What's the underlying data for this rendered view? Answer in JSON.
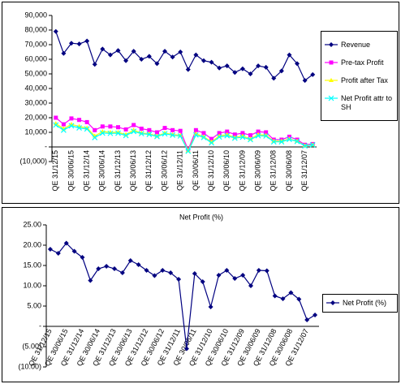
{
  "chart_data": [
    {
      "type": "line",
      "categories": [
        "QE 31/12/15",
        null,
        "QE 30/06/15",
        null,
        "QE 31/12/14",
        null,
        "QE 30/06/14",
        null,
        "QE 31/12/13",
        null,
        "QE 30/06/13",
        null,
        "QE 31/12/12",
        null,
        "QE 30/06/12",
        null,
        "QE 31/12/11",
        null,
        "QE 30/06/11",
        null,
        "QE 31/12/10",
        null,
        "QE 30/06/10",
        null,
        "QE 31/12/09",
        null,
        "QE 30/06/09",
        null,
        "QE 31/12/08",
        null,
        "QE 30/06/08",
        null,
        "QE 31/12/07",
        null
      ],
      "series": [
        {
          "name": "Revenue",
          "color": "#000080",
          "marker": "diamond",
          "values": [
            79000,
            64000,
            71000,
            70500,
            72500,
            56500,
            67000,
            63000,
            66000,
            59000,
            65500,
            60000,
            62000,
            57000,
            65500,
            61500,
            65000,
            53000,
            63000,
            59000,
            58000,
            54000,
            55500,
            51000,
            53500,
            50000,
            55500,
            54500,
            47000,
            52000,
            63000,
            57000,
            45500,
            49500
          ]
        },
        {
          "name": "Pre-tax Profit",
          "color": "#ff00ff",
          "marker": "square",
          "values": [
            20000,
            15500,
            19500,
            18500,
            17000,
            11500,
            14000,
            14000,
            13500,
            12000,
            15000,
            12500,
            11500,
            10000,
            13000,
            11500,
            11000,
            -2000,
            11500,
            9500,
            5500,
            9500,
            10500,
            8500,
            9500,
            8000,
            10500,
            10000,
            5000,
            5000,
            7000,
            5000,
            1500,
            2000
          ]
        },
        {
          "name": "Profit after Tax",
          "color": "#ffff00",
          "marker": "triangle",
          "values": [
            16000,
            12500,
            15500,
            14000,
            13000,
            7500,
            10500,
            10000,
            10000,
            8500,
            11500,
            9500,
            9000,
            7500,
            9500,
            8500,
            8000,
            -2500,
            9000,
            7000,
            3500,
            7500,
            8500,
            6500,
            7500,
            5500,
            8500,
            8000,
            4000,
            4000,
            5500,
            4000,
            1000,
            1500
          ]
        },
        {
          "name": "Net Profit attr to SH",
          "color": "#00ffff",
          "marker": "cross",
          "values": [
            15000,
            11500,
            14500,
            13000,
            12300,
            6400,
            9500,
            9300,
            9400,
            7800,
            10600,
            9100,
            8600,
            7100,
            9000,
            8100,
            7500,
            -2900,
            8200,
            6500,
            2800,
            6800,
            7700,
            6000,
            6700,
            5000,
            7700,
            7500,
            3500,
            3500,
            5200,
            3800,
            700,
            1400
          ]
        }
      ],
      "ylim": [
        -10000,
        90000
      ],
      "yticks": [
        {
          "value": -10000,
          "label": "(10,000)"
        },
        {
          "value": 0,
          "label": "-"
        },
        {
          "value": 10000,
          "label": "10,000"
        },
        {
          "value": 20000,
          "label": "20,000"
        },
        {
          "value": 30000,
          "label": "30,000"
        },
        {
          "value": 40000,
          "label": "40,000"
        },
        {
          "value": 50000,
          "label": "50,000"
        },
        {
          "value": 60000,
          "label": "60,000"
        },
        {
          "value": 70000,
          "label": "70,000"
        },
        {
          "value": 80000,
          "label": "80,000"
        },
        {
          "value": 90000,
          "label": "90,000"
        }
      ],
      "legend": "right",
      "grid": false
    },
    {
      "type": "line",
      "title": "Net Profit (%)",
      "categories": [
        "QE 31/12/15",
        null,
        "QE 30/06/15",
        null,
        "QE 31/12/14",
        null,
        "QE 30/06/14",
        null,
        "QE 31/12/13",
        null,
        "QE 30/06/13",
        null,
        "QE 31/12/12",
        null,
        "QE 30/06/12",
        null,
        "QE 31/12/11",
        null,
        "QE 30/06/11",
        null,
        "QE 31/12/10",
        null,
        "QE 30/06/10",
        null,
        "QE 31/12/09",
        null,
        "QE 30/06/09",
        null,
        "QE 31/12/08",
        null,
        "QE 30/06/08",
        null,
        "QE 31/12/07",
        null
      ],
      "series": [
        {
          "name": "Net Profit (%)",
          "color": "#000080",
          "marker": "diamond",
          "values": [
            19.0,
            18.0,
            20.5,
            18.5,
            17.0,
            11.3,
            14.2,
            14.8,
            14.2,
            13.2,
            16.2,
            15.2,
            13.8,
            12.5,
            13.8,
            13.2,
            11.6,
            -5.5,
            13.0,
            11.0,
            4.8,
            12.6,
            13.8,
            11.8,
            12.6,
            10.0,
            13.8,
            13.7,
            7.5,
            6.8,
            8.3,
            6.7,
            1.6,
            2.8
          ]
        }
      ],
      "ylim": [
        -10,
        25
      ],
      "yticks": [
        {
          "value": -10,
          "label": "(10.00)"
        },
        {
          "value": -5,
          "label": "(5.00)"
        },
        {
          "value": 0,
          "label": "-"
        },
        {
          "value": 5,
          "label": "5.00"
        },
        {
          "value": 10,
          "label": "10.00"
        },
        {
          "value": 15,
          "label": "15.00"
        },
        {
          "value": 20,
          "label": "20.00"
        },
        {
          "value": 25,
          "label": "25.00"
        }
      ],
      "legend": "right",
      "grid": false
    }
  ]
}
